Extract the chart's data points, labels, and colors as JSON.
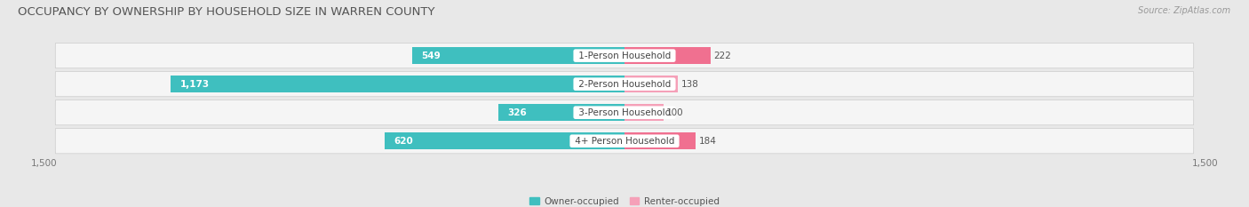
{
  "title": "OCCUPANCY BY OWNERSHIP BY HOUSEHOLD SIZE IN WARREN COUNTY",
  "source": "Source: ZipAtlas.com",
  "categories": [
    "1-Person Household",
    "2-Person Household",
    "3-Person Household",
    "4+ Person Household"
  ],
  "owner_values": [
    549,
    1173,
    326,
    620
  ],
  "renter_values": [
    222,
    138,
    100,
    184
  ],
  "owner_color": "#3FBFBF",
  "renter_color": "#F07090",
  "renter_color_light": "#F5A0B8",
  "axis_max": 1500,
  "bg_color": "#e8e8e8",
  "row_bg_color": "#f0f0f0",
  "legend_owner": "Owner-occupied",
  "legend_renter": "Renter-occupied",
  "title_fontsize": 9.5,
  "source_fontsize": 7,
  "bar_label_fontsize": 7.5,
  "axis_label_fontsize": 7.5,
  "cat_label_fontsize": 7.5,
  "bar_height": 0.58
}
